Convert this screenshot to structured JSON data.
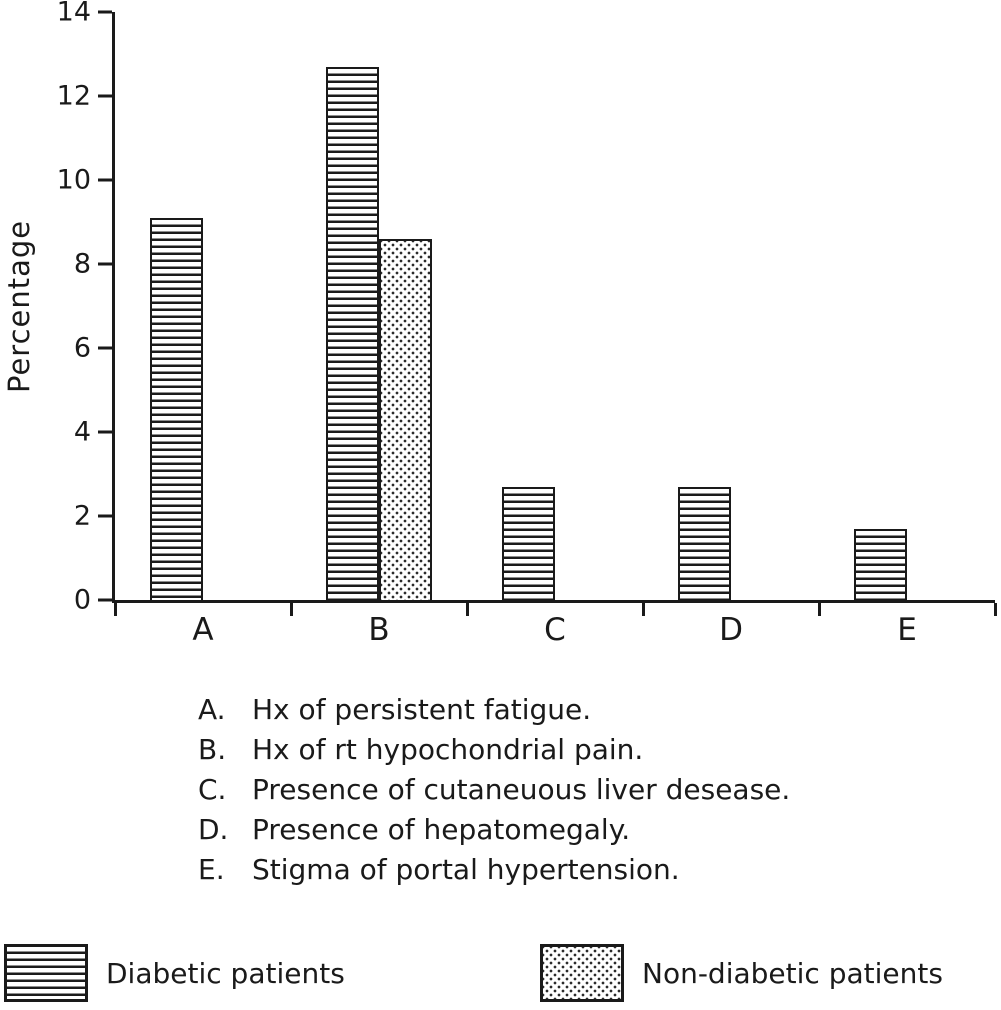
{
  "chart_data": {
    "type": "bar",
    "title": "",
    "xlabel": "",
    "ylabel": "Percentage",
    "ylim": [
      0,
      14
    ],
    "yticks": [
      0,
      2,
      4,
      6,
      8,
      10,
      12,
      14
    ],
    "categories": [
      "A",
      "B",
      "C",
      "D",
      "E"
    ],
    "series": [
      {
        "name": "Diabetic patients",
        "pattern": "horizontal-lines",
        "values": [
          9.1,
          12.7,
          2.7,
          2.7,
          1.7
        ]
      },
      {
        "name": "Non-diabetic patients",
        "pattern": "dots",
        "values": [
          0,
          8.6,
          0,
          0,
          0
        ]
      }
    ],
    "grid": false,
    "legend_position": "bottom"
  },
  "key": {
    "items": [
      {
        "letter": "A.",
        "text": "Hx of persistent fatigue."
      },
      {
        "letter": "B.",
        "text": "Hx of rt hypochondrial pain."
      },
      {
        "letter": "C.",
        "text": "Presence of cutaneuous liver desease."
      },
      {
        "letter": "D.",
        "text": "Presence of hepatomegaly."
      },
      {
        "letter": "E.",
        "text": "Stigma of portal hypertension."
      }
    ]
  },
  "legend": {
    "items": [
      {
        "label": "Diabetic patients",
        "pattern": "horizontal-lines"
      },
      {
        "label": "Non-diabetic patients",
        "pattern": "dots"
      }
    ]
  },
  "colors": {
    "ink": "#1a1a1a",
    "background": "#ffffff"
  }
}
